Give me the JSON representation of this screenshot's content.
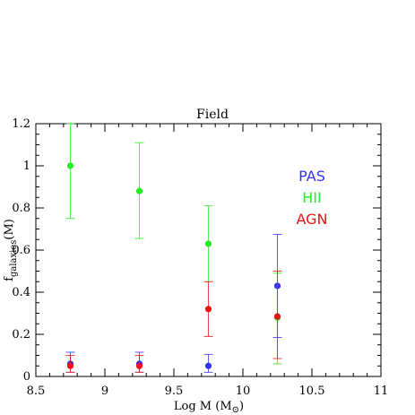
{
  "chart_data": {
    "type": "scatter",
    "title": "Field",
    "xlabel": "Log M (M",
    "xlabel_sub": "⊙",
    "xlabel_close": ")",
    "ylabel_main": "f",
    "ylabel_sub": "galaxies",
    "ylabel_end": "(M)",
    "xlim": [
      8.5,
      11
    ],
    "ylim": [
      0,
      1.2
    ],
    "x_ticks": [
      8.5,
      9,
      9.5,
      10,
      10.5,
      11
    ],
    "x_tick_labels": [
      "8.5",
      "9",
      "9.5",
      "10",
      "10.5",
      "11"
    ],
    "y_ticks": [
      0,
      0.2,
      0.4,
      0.6,
      0.8,
      1,
      1.2
    ],
    "y_tick_labels": [
      "0",
      "0.2",
      "0.4",
      "0.6",
      "0.8",
      "1",
      "1.2"
    ],
    "grid": false,
    "legend_position": "right",
    "series": [
      {
        "name": "PAS",
        "color": "#3333ee",
        "points": [
          {
            "x": 8.75,
            "y": 0.06,
            "err_low": 0.02,
            "err_high": 0.115
          },
          {
            "x": 9.25,
            "y": 0.06,
            "err_low": 0.02,
            "err_high": 0.115
          },
          {
            "x": 9.75,
            "y": 0.05,
            "err_low": 0.02,
            "err_high": 0.105
          },
          {
            "x": 10.25,
            "y": 0.43,
            "err_low": 0.185,
            "err_high": 0.675
          }
        ]
      },
      {
        "name": "HII",
        "color": "#22ee22",
        "points": [
          {
            "x": 8.75,
            "y": 1.0,
            "err_low": 0.75,
            "err_high": 1.22
          },
          {
            "x": 9.25,
            "y": 0.88,
            "err_low": 0.655,
            "err_high": 1.11
          },
          {
            "x": 9.75,
            "y": 0.63,
            "err_low": 0.45,
            "err_high": 0.81
          },
          {
            "x": 10.25,
            "y": 0.28,
            "err_low": 0.06,
            "err_high": 0.49
          }
        ]
      },
      {
        "name": "AGN",
        "color": "#ee1111",
        "points": [
          {
            "x": 8.75,
            "y": 0.05,
            "err_low": 0.02,
            "err_high": 0.1
          },
          {
            "x": 9.25,
            "y": 0.05,
            "err_low": 0.02,
            "err_high": 0.1
          },
          {
            "x": 9.75,
            "y": 0.32,
            "err_low": 0.19,
            "err_high": 0.45
          },
          {
            "x": 10.25,
            "y": 0.285,
            "err_low": 0.085,
            "err_high": 0.5
          }
        ]
      }
    ]
  }
}
